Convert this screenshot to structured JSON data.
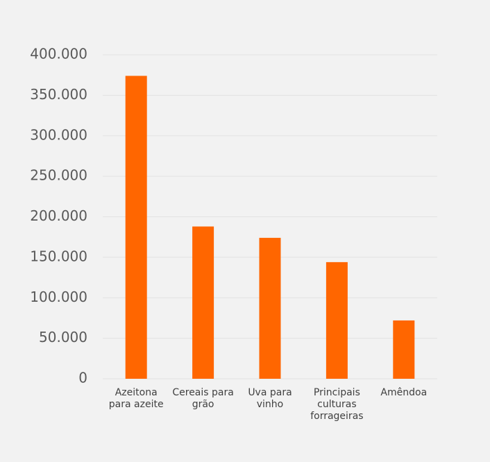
{
  "chart_data": {
    "type": "bar",
    "categories": [
      "Azeitona para azeite",
      "Cereais para grão",
      "Uva para vinho",
      "Principais culturas forrageiras",
      "Amêndoa"
    ],
    "values": [
      374000,
      188000,
      174000,
      144000,
      72000
    ],
    "color": "#ff6600",
    "ylim": [
      0,
      400000
    ],
    "yticks": [
      0,
      {
        "value": 50000,
        "label": "50.000"
      },
      {
        "value": 100000,
        "label": "100.000"
      },
      {
        "value": 150000,
        "label": "150.000"
      },
      {
        "value": 200000,
        "label": "200.000"
      },
      {
        "value": 250000,
        "label": "250.000"
      },
      {
        "value": 300000,
        "label": "300.000"
      },
      {
        "value": 350000,
        "label": "350.000"
      },
      {
        "value": 400000,
        "label": "400.000"
      }
    ],
    "grid": true
  }
}
